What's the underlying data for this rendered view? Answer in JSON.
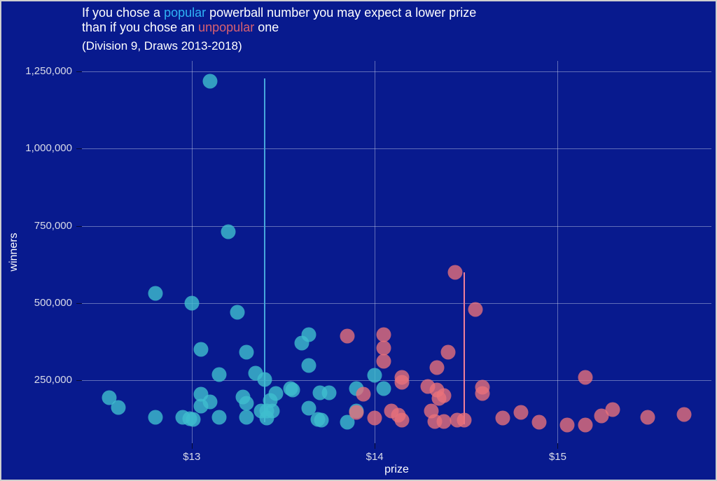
{
  "figure": {
    "background": "#081a8e",
    "border_color": "#cfcfcf",
    "title": {
      "line1_pre": "If you chose a ",
      "line1_popular": "popular",
      "line1_post": " powerball number you may expect a lower prize",
      "line2_pre": "than if you chose an ",
      "line2_unpopular": "unpopular",
      "line2_post": " one",
      "subtitle": "(Division 9, Draws 2013-2018)",
      "popular_color": "#2fb3f5",
      "unpopular_color": "#d96070",
      "text_color": "#ffffff"
    }
  },
  "chart_data": {
    "type": "scatter",
    "title": "If you chose a popular powerball number you may expect a lower prize than if you chose an unpopular one",
    "subtitle": "(Division 9, Draws 2013-2018)",
    "xlabel": "prize",
    "ylabel": "winners",
    "xlim": [
      12.4,
      15.84
    ],
    "ylim": [
      45000,
      1285000
    ],
    "grid": true,
    "legend": "none",
    "x_ticks": [
      {
        "value": 13,
        "label": "$13"
      },
      {
        "value": 14,
        "label": "$14"
      },
      {
        "value": 15,
        "label": "$15"
      }
    ],
    "y_ticks": [
      {
        "value": 250000,
        "label": "250,000"
      },
      {
        "value": 500000,
        "label": "500,000"
      },
      {
        "value": 750000,
        "label": "750,000"
      },
      {
        "value": 1000000,
        "label": "1,000,000"
      },
      {
        "value": 1250000,
        "label": "1,250,000"
      }
    ],
    "series": [
      {
        "name": "popular",
        "color": "rgba(62,190,206,0.8)",
        "points": [
          [
            12.55,
            192000
          ],
          [
            12.6,
            160000
          ],
          [
            12.8,
            530000
          ],
          [
            12.8,
            128000
          ],
          [
            12.95,
            128000
          ],
          [
            12.99,
            124000
          ],
          [
            13.01,
            122000
          ],
          [
            13.0,
            500000
          ],
          [
            13.05,
            350000
          ],
          [
            13.05,
            205000
          ],
          [
            13.05,
            165000
          ],
          [
            13.1,
            1220000
          ],
          [
            13.1,
            178000
          ],
          [
            13.15,
            268000
          ],
          [
            13.15,
            128000
          ],
          [
            13.2,
            730000
          ],
          [
            13.25,
            470000
          ],
          [
            13.28,
            196000
          ],
          [
            13.3,
            340000
          ],
          [
            13.3,
            175000
          ],
          [
            13.3,
            128000
          ],
          [
            13.35,
            272000
          ],
          [
            13.4,
            252000
          ],
          [
            13.38,
            150000
          ],
          [
            13.41,
            150000
          ],
          [
            13.41,
            126000
          ],
          [
            13.43,
            183000
          ],
          [
            13.44,
            150000
          ],
          [
            13.46,
            207000
          ],
          [
            13.54,
            222000
          ],
          [
            13.55,
            218000
          ],
          [
            13.6,
            370000
          ],
          [
            13.64,
            396000
          ],
          [
            13.64,
            297000
          ],
          [
            13.64,
            158000
          ],
          [
            13.69,
            122000
          ],
          [
            13.71,
            120000
          ],
          [
            13.7,
            208000
          ],
          [
            13.75,
            208000
          ],
          [
            13.85,
            113000
          ],
          [
            13.9,
            223000
          ],
          [
            13.9,
            150000
          ],
          [
            14.0,
            266000
          ],
          [
            14.05,
            223000
          ]
        ]
      },
      {
        "name": "unpopular",
        "color": "rgba(235,114,122,0.78)",
        "points": [
          [
            13.85,
            392000
          ],
          [
            13.9,
            146000
          ],
          [
            13.94,
            205000
          ],
          [
            14.0,
            126000
          ],
          [
            14.05,
            396000
          ],
          [
            14.05,
            354000
          ],
          [
            14.05,
            311000
          ],
          [
            14.09,
            149000
          ],
          [
            14.13,
            135000
          ],
          [
            14.15,
            258000
          ],
          [
            14.15,
            243000
          ],
          [
            14.15,
            120000
          ],
          [
            14.29,
            228000
          ],
          [
            14.31,
            150000
          ],
          [
            14.33,
            115000
          ],
          [
            14.34,
            290000
          ],
          [
            14.34,
            218000
          ],
          [
            14.35,
            190000
          ],
          [
            14.38,
            200000
          ],
          [
            14.38,
            115000
          ],
          [
            14.4,
            340000
          ],
          [
            14.44,
            600000
          ],
          [
            14.45,
            120000
          ],
          [
            14.49,
            120000
          ],
          [
            14.55,
            478000
          ],
          [
            14.59,
            227000
          ],
          [
            14.59,
            207000
          ],
          [
            14.7,
            126000
          ],
          [
            14.8,
            144000
          ],
          [
            14.9,
            112000
          ],
          [
            15.05,
            104000
          ],
          [
            15.15,
            104000
          ],
          [
            15.15,
            258000
          ],
          [
            15.24,
            133000
          ],
          [
            15.3,
            153000
          ],
          [
            15.49,
            128000
          ],
          [
            15.69,
            137000
          ]
        ]
      }
    ],
    "vlines": [
      {
        "series": "popular",
        "x": 13.4,
        "y0": 113000,
        "y1": 1228000,
        "color": "#46a6dd"
      },
      {
        "series": "unpopular",
        "x": 14.49,
        "y0": 107000,
        "y1": 600000,
        "color": "#ee7f99"
      }
    ]
  }
}
